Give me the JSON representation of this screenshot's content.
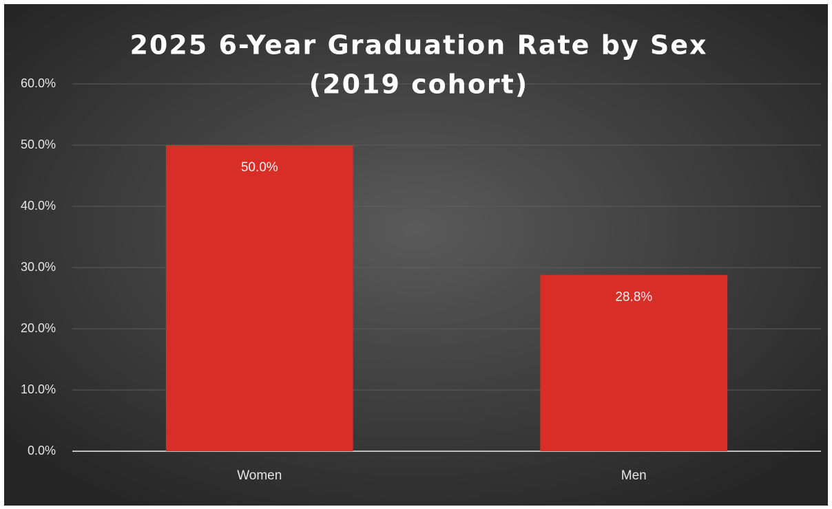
{
  "chart_data": {
    "type": "bar",
    "title": [
      "2025 6-Year Graduation Rate by Sex",
      "(2019 cohort)"
    ],
    "categories": [
      "Women",
      "Men"
    ],
    "values": [
      50.0,
      28.8
    ],
    "value_labels": [
      "50.0%",
      "28.8%"
    ],
    "color": "#d92d27",
    "ylim": [
      0,
      60
    ],
    "yticks": [
      {
        "value": 0,
        "label": "0.0%"
      },
      {
        "value": 10,
        "label": "10.0%"
      },
      {
        "value": 20,
        "label": "20.0%"
      },
      {
        "value": 30,
        "label": "30.0%"
      },
      {
        "value": 40,
        "label": "40.0%"
      },
      {
        "value": 50,
        "label": "50.0%"
      },
      {
        "value": 60,
        "label": "60.0%"
      }
    ],
    "grid": true
  }
}
